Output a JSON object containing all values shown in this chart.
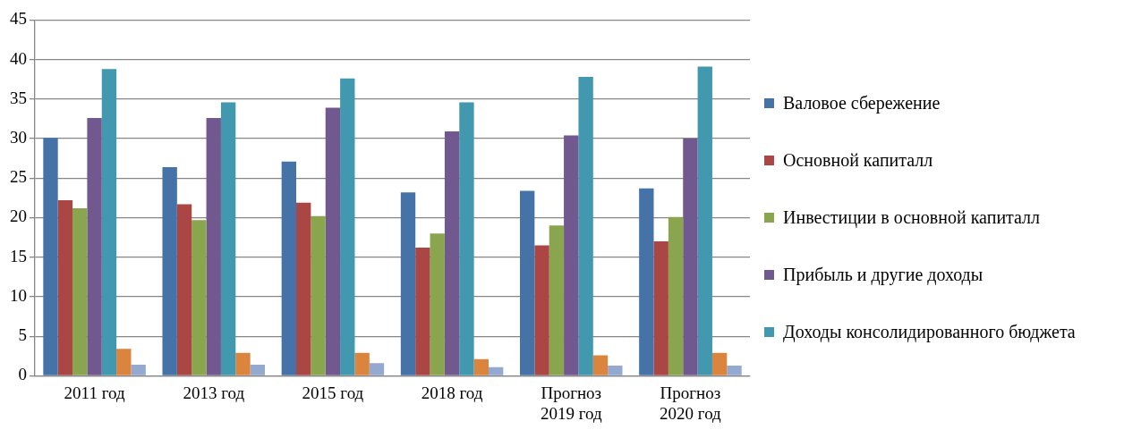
{
  "chart_data": {
    "type": "bar",
    "categories": [
      "2011 год",
      "2013 год",
      "2015 год",
      "2018 год",
      "Прогноз 2019 год",
      "Прогноз 2020 год"
    ],
    "ylim": [
      0,
      45
    ],
    "yticks": [
      0,
      5,
      10,
      15,
      20,
      25,
      30,
      35,
      40,
      45
    ],
    "grid": "y",
    "legend": "right",
    "series": [
      {
        "name": "Валовое сбережение",
        "color": "#4572a7",
        "values": [
          30.1,
          26.4,
          27.1,
          23.2,
          23.4,
          23.7
        ]
      },
      {
        "name": "Основной капиталл",
        "color": "#aa4643",
        "values": [
          22.2,
          21.7,
          21.9,
          16.2,
          16.5,
          17.0
        ]
      },
      {
        "name": "Инвестиции  в основной капиталл",
        "color": "#89a54e",
        "values": [
          21.2,
          19.7,
          20.2,
          18.0,
          19.0,
          20.1
        ]
      },
      {
        "name": "Прибыль и другие доходы",
        "color": "#71588f",
        "values": [
          32.6,
          32.6,
          33.9,
          30.9,
          30.4,
          30.0
        ]
      },
      {
        "name": "Доходы консолидированного бюджета",
        "color": "#4198af",
        "values": [
          38.8,
          34.6,
          37.6,
          34.6,
          37.8,
          39.1
        ]
      },
      {
        "color": "#db843d",
        "values": [
          3.4,
          2.9,
          2.9,
          2.1,
          2.6,
          2.9
        ]
      },
      {
        "color": "#93a9cf",
        "values": [
          1.4,
          1.4,
          1.6,
          1.1,
          1.3,
          1.3
        ]
      }
    ]
  }
}
